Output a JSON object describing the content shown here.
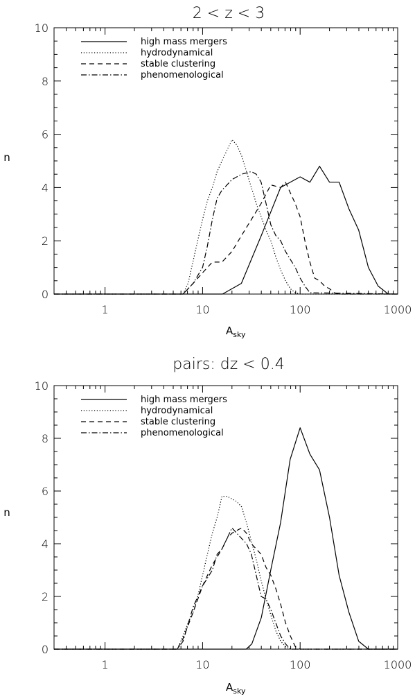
{
  "chart_data": [
    {
      "type": "line",
      "title": "2 < z < 3",
      "xlabel_main": "A",
      "xlabel_sub": "sky",
      "ylabel": "n",
      "xscale": "log",
      "xlim": [
        0.3,
        1000
      ],
      "ylim": [
        0,
        10
      ],
      "xticks": [
        1,
        10,
        100,
        1000
      ],
      "xtick_labels": [
        "1",
        "10",
        "100",
        "1000"
      ],
      "yticks": [
        0,
        2,
        4,
        6,
        8,
        10
      ],
      "ytick_labels": [
        "0",
        "2",
        "4",
        "6",
        "8",
        "10"
      ],
      "legend_position": "top-left",
      "series": [
        {
          "name": "high mass mergers",
          "dash": "solid",
          "x": [
            0.3,
            16,
            25,
            40,
            63,
            100,
            126,
            158,
            200,
            251,
            316,
            398,
            501,
            631,
            800,
            1000
          ],
          "y": [
            0,
            0,
            0.4,
            2.2,
            4.0,
            4.4,
            4.2,
            4.8,
            4.2,
            4.2,
            3.2,
            2.4,
            1.0,
            0.3,
            0,
            0
          ]
        },
        {
          "name": "hydrodynamical",
          "dash": "dotted",
          "x": [
            0.3,
            6.3,
            7.1,
            8.9,
            10,
            11.2,
            12.6,
            14.1,
            15.8,
            17.8,
            20,
            22.4,
            25.1,
            28.2,
            31.6,
            35.5,
            39.8,
            44.7,
            50.1,
            56.2,
            63.1,
            70.8,
            79.4,
            89.1,
            100,
            1000
          ],
          "y": [
            0,
            0,
            0.4,
            2.0,
            2.8,
            3.5,
            4.0,
            4.6,
            5.0,
            5.4,
            5.8,
            5.6,
            5.2,
            4.6,
            4.0,
            3.4,
            2.9,
            2.4,
            2.0,
            1.4,
            0.9,
            0.5,
            0.2,
            0.05,
            0,
            0
          ]
        },
        {
          "name": "stable clustering",
          "dash": "dashed",
          "x": [
            0.3,
            6.3,
            8,
            10,
            12.6,
            15.8,
            20,
            25.1,
            31.6,
            39.8,
            50.1,
            63.1,
            70.8,
            79.4,
            89.1,
            100,
            112,
            126,
            141,
            158,
            178,
            200,
            224,
            251,
            1000
          ],
          "y": [
            0,
            0,
            0.4,
            0.8,
            1.2,
            1.2,
            1.6,
            2.2,
            2.8,
            3.4,
            4.1,
            4.0,
            4.2,
            3.8,
            3.4,
            2.9,
            2.0,
            1.2,
            0.6,
            0.5,
            0.3,
            0.2,
            0.05,
            0,
            0
          ]
        },
        {
          "name": "phenomenological",
          "dash": "dashdot",
          "x": [
            0.3,
            6.3,
            8,
            10,
            11.2,
            12.6,
            14.1,
            15.8,
            17.8,
            20,
            25.1,
            31.6,
            35.5,
            39.8,
            44.7,
            50.1,
            56.2,
            63.1,
            70.8,
            79.4,
            89.1,
            100,
            112,
            126,
            1000
          ],
          "y": [
            0,
            0,
            0.4,
            1.0,
            1.8,
            2.8,
            3.6,
            3.9,
            4.1,
            4.3,
            4.5,
            4.6,
            4.5,
            4.2,
            3.4,
            2.6,
            2.2,
            2.0,
            1.6,
            1.3,
            1.0,
            0.6,
            0.3,
            0.05,
            0
          ]
        }
      ]
    },
    {
      "type": "line",
      "title": "pairs: dz < 0.4",
      "xlabel_main": "A",
      "xlabel_sub": "sky",
      "ylabel": "n",
      "xscale": "log",
      "xlim": [
        0.3,
        1000
      ],
      "ylim": [
        0,
        10
      ],
      "xticks": [
        1,
        10,
        100,
        1000
      ],
      "xtick_labels": [
        "1",
        "10",
        "100",
        "1000"
      ],
      "yticks": [
        0,
        2,
        4,
        6,
        8,
        10
      ],
      "ytick_labels": [
        "0",
        "2",
        "4",
        "6",
        "8",
        "10"
      ],
      "legend_position": "top-left",
      "series": [
        {
          "name": "high mass mergers",
          "dash": "solid",
          "x": [
            0.3,
            28,
            32,
            40,
            50,
            63,
            79,
            100,
            126,
            158,
            200,
            251,
            316,
            398,
            501,
            1000
          ],
          "y": [
            0,
            0,
            0.2,
            1.2,
            3.0,
            4.8,
            7.2,
            8.4,
            7.4,
            6.8,
            5.0,
            2.8,
            1.4,
            0.3,
            0,
            0
          ]
        },
        {
          "name": "hydrodynamical",
          "dash": "dotted",
          "x": [
            0.3,
            5.5,
            6.3,
            7.1,
            8,
            8.9,
            10,
            11.2,
            12.6,
            14.1,
            15.8,
            17.8,
            20,
            22.4,
            25.1,
            28.2,
            31.6,
            35.5,
            39.8,
            44.7,
            50.1,
            56.2,
            63.1,
            70.8,
            79.4,
            1000
          ],
          "y": [
            0,
            0,
            0.5,
            1.0,
            1.4,
            2.0,
            2.8,
            3.6,
            4.4,
            5.0,
            5.8,
            5.8,
            5.7,
            5.6,
            5.4,
            4.8,
            4.1,
            3.4,
            2.6,
            1.9,
            1.3,
            0.7,
            0.3,
            0.1,
            0,
            0
          ]
        },
        {
          "name": "stable clustering",
          "dash": "dashed",
          "x": [
            0.3,
            5.5,
            6.3,
            8,
            10,
            12.6,
            15.8,
            17.8,
            20,
            22.4,
            25.1,
            28.2,
            31.6,
            35.5,
            39.8,
            44.7,
            50.1,
            56.2,
            63.1,
            70.8,
            79.4,
            89.1,
            100,
            1000
          ],
          "y": [
            0,
            0,
            0.4,
            1.4,
            2.4,
            3.2,
            3.8,
            4.2,
            4.4,
            4.5,
            4.6,
            4.4,
            4.0,
            3.8,
            3.6,
            3.1,
            2.8,
            2.3,
            1.7,
            1.0,
            0.5,
            0.1,
            0,
            0
          ]
        },
        {
          "name": "phenomenological",
          "dash": "dashdot",
          "x": [
            0.3,
            5.5,
            6.3,
            8,
            10,
            12.6,
            14.1,
            15.8,
            17.8,
            20,
            22.4,
            25.1,
            28.2,
            31.6,
            35.5,
            39.8,
            44.7,
            50.1,
            56.2,
            63.1,
            70.8,
            79.4,
            1000
          ],
          "y": [
            0,
            0,
            0.3,
            1.6,
            2.4,
            3.0,
            3.6,
            3.8,
            4.2,
            4.6,
            4.4,
            4.2,
            4.0,
            3.6,
            2.8,
            2.0,
            1.9,
            1.5,
            1.0,
            0.5,
            0.2,
            0,
            0
          ]
        }
      ]
    }
  ]
}
